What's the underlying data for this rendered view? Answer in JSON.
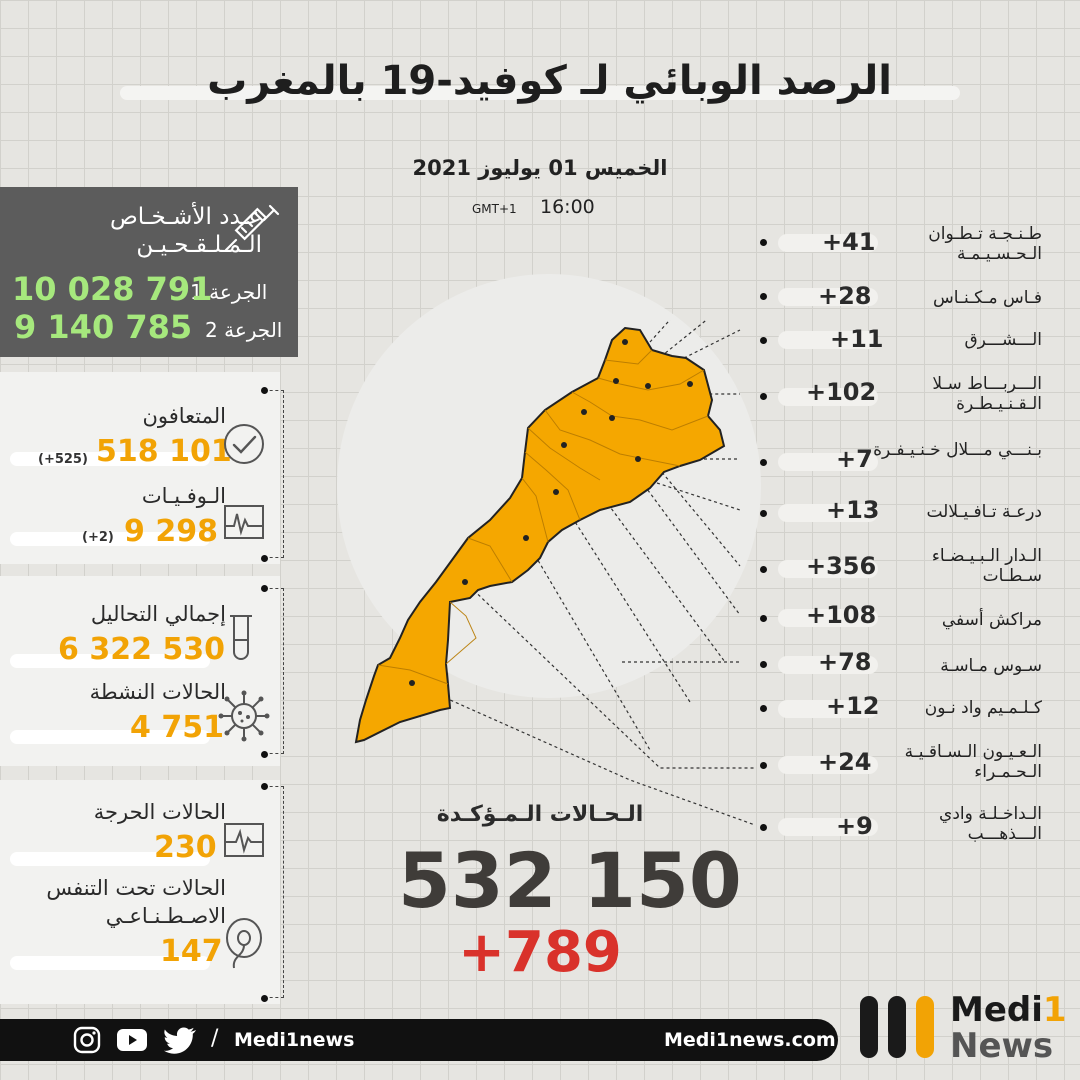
{
  "header": {
    "title": "الرصد الوبائي لـ كوفيد-19 بالمغرب",
    "date": "الخميس 01 يوليوز 2021",
    "time": "16:00",
    "timezone": "GMT+1"
  },
  "vaccination": {
    "label_line1": "عـدد الأشـخـاص",
    "label_line2": "الـمـلـقـحـيـن",
    "dose1_label": "الجرعة 1",
    "dose1_value": "10 028 791",
    "dose2_label": "الجرعة 2",
    "dose2_value": "9 140 785",
    "icon": "syringe-icon"
  },
  "stats": {
    "recovered": {
      "label": "المتعافون",
      "value": "518 101",
      "delta": "(+525)",
      "icon": "check-circle-icon"
    },
    "deaths": {
      "label": "الـوفـيـات",
      "value": "9 298",
      "delta": "(+2)",
      "icon": "ecg-icon"
    },
    "tests": {
      "label": "إجمالي التحاليل",
      "value": "6 322 530",
      "icon": "test-tube-icon"
    },
    "active": {
      "label": "الحالات النشطة",
      "value": "4 751",
      "icon": "virus-icon"
    },
    "critical": {
      "label": "الحالات الحرجة",
      "value": "230",
      "icon": "heart-monitor-icon"
    },
    "ventilation": {
      "label_line1": "الحالات تحت التنفس",
      "label_line2": "الاصـطـنـاعـي",
      "value": "147",
      "icon": "ventilator-mask-icon"
    }
  },
  "regions": [
    {
      "name": "طـنـجـة تـطـوان الـحـسـيـمـة",
      "count": "+41"
    },
    {
      "name": "فـاس مـكـنـاس",
      "count": "+28"
    },
    {
      "name": "الـــشـــرق",
      "count": "+11"
    },
    {
      "name": "الـــربـــاط سـلا الـقـنـيـطـرة",
      "count": "+102"
    },
    {
      "name": "بـنـــي مـــلال خـنـيـفـرة",
      "count": "+7"
    },
    {
      "name": "درعـة تـافـيـلالت",
      "count": "+13"
    },
    {
      "name": "الـدار الـبـيـضـاء سـطـات",
      "count": "+356"
    },
    {
      "name": "مراكش أسفي",
      "count": "+108"
    },
    {
      "name": "سـوس مـاسـة",
      "count": "+78"
    },
    {
      "name": "كـلـمـيم واد نـون",
      "count": "+12"
    },
    {
      "name": "الـعـيـون الـسـاقـيـة الـحـمـراء",
      "count": "+24"
    },
    {
      "name": "الـداخـلـة وادي الـــذهـــب",
      "count": "+9"
    }
  ],
  "confirmed": {
    "label": "الـحـالات الـمـؤكـدة",
    "value": "532 150",
    "delta": "+789"
  },
  "footer": {
    "handle": "Medi1news",
    "website": "Medi1news.com",
    "social_icons": [
      "instagram-icon",
      "youtube-icon",
      "twitter-icon"
    ],
    "brand_line1": "Medi",
    "brand_line1_accent": "1",
    "brand_line2": "News"
  },
  "colors": {
    "accent_orange": "#f2a305",
    "vaccine_green": "#a6e87d",
    "delta_red": "#d9322b",
    "dark_box": "#5c5c5c"
  }
}
